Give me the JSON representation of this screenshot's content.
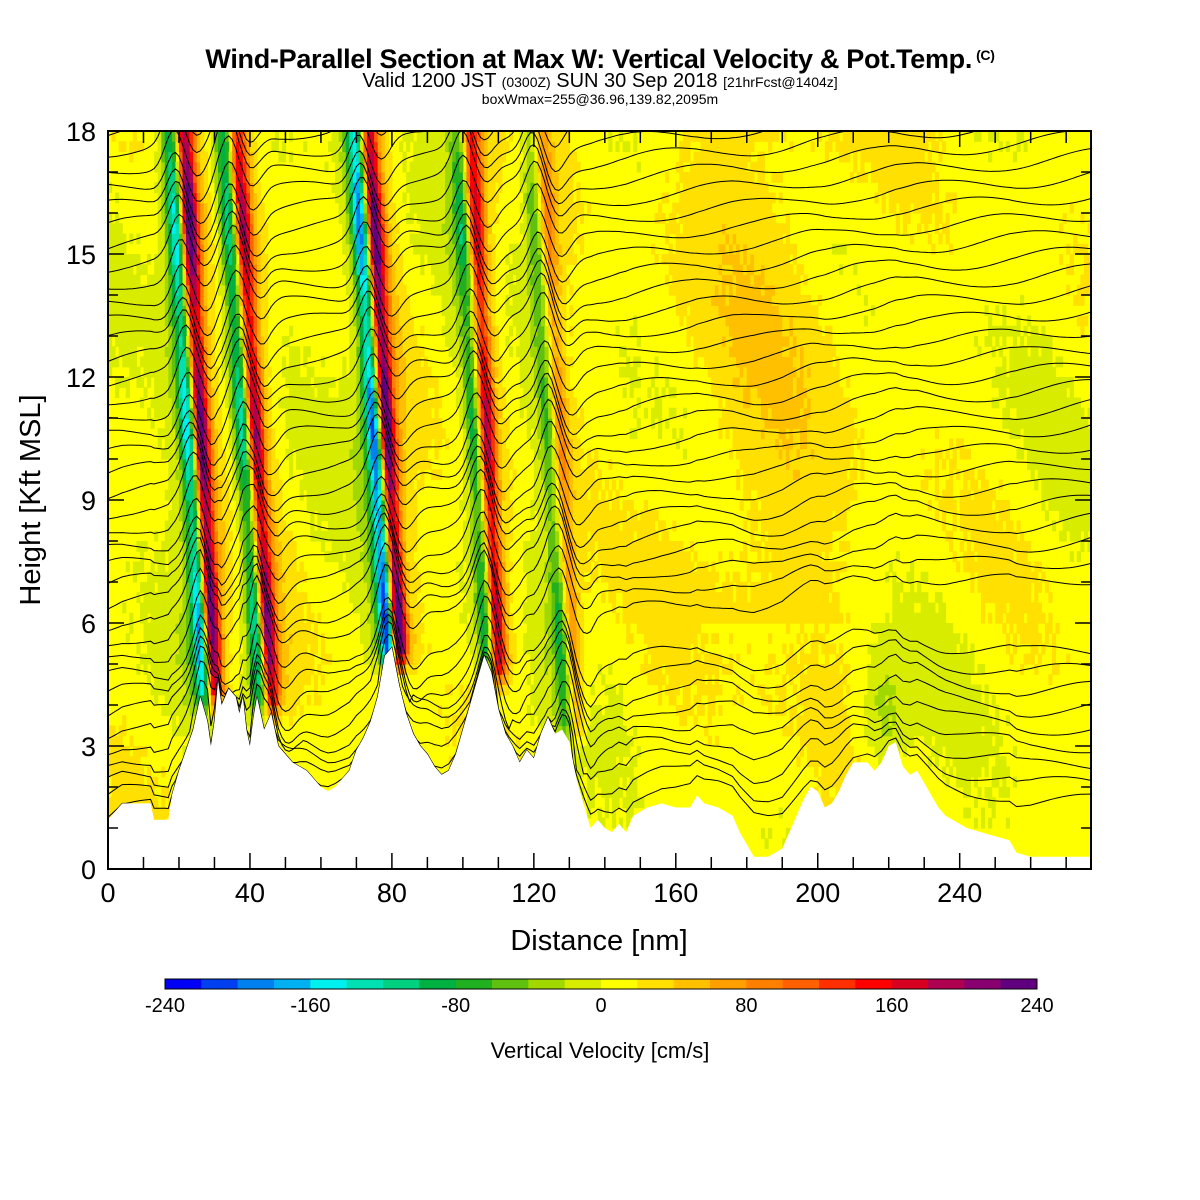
{
  "title": {
    "main": "Wind-Parallel Section at Max W: Vertical Velocity & Pot.Temp.",
    "main_suffix": "(C)",
    "valid_prefix": "Valid 1200 JST",
    "valid_utc": "(0300Z)",
    "valid_date": "SUN 30 Sep 2018",
    "forecast": "[21hrFcst@1404z]",
    "box_info": "boxWmax=255@36.96,139.82,2095m"
  },
  "chart_data": {
    "type": "heatmap",
    "xlabel": "Distance [nm]",
    "ylabel": "Height [Kft MSL]",
    "xlim": [
      0,
      277
    ],
    "ylim": [
      0,
      18
    ],
    "xticks": [
      "0",
      "40",
      "80",
      "120",
      "160",
      "200",
      "240"
    ],
    "yticks": [
      "0",
      "3",
      "6",
      "9",
      "12",
      "15",
      "18"
    ],
    "xtick_values": [
      0,
      40,
      80,
      120,
      160,
      200,
      240
    ],
    "ytick_values": [
      0,
      3,
      6,
      9,
      12,
      15,
      18
    ],
    "colorbar": {
      "title": "Vertical Velocity [cm/s]",
      "labels": [
        "-240",
        "-160",
        "-80",
        "0",
        "80",
        "160",
        "240"
      ],
      "label_values": [
        -240,
        -160,
        -80,
        0,
        80,
        160,
        240
      ],
      "range": [
        -240,
        240
      ],
      "colors": [
        "#0000f5",
        "#0040f0",
        "#0080f0",
        "#00b0f0",
        "#00f0f0",
        "#00e0b0",
        "#00d080",
        "#00b040",
        "#20b020",
        "#60c010",
        "#a0d800",
        "#d8ec00",
        "#ffff00",
        "#ffe000",
        "#ffc000",
        "#ffa000",
        "#ff8000",
        "#ff6000",
        "#ff3000",
        "#ff0000",
        "#d80020",
        "#b00050",
        "#880070",
        "#600080"
      ]
    },
    "terrain": [
      [
        0,
        1.2
      ],
      [
        4,
        1.6
      ],
      [
        12,
        1.6
      ],
      [
        13,
        1.2
      ],
      [
        17,
        1.2
      ],
      [
        18,
        1.8
      ],
      [
        20,
        2.4
      ],
      [
        22,
        2.9
      ],
      [
        24,
        3.4
      ],
      [
        26,
        4.2
      ],
      [
        28,
        3.6
      ],
      [
        29,
        3.0
      ],
      [
        30,
        3.6
      ],
      [
        31,
        4.6
      ],
      [
        32,
        4.0
      ],
      [
        34,
        4.4
      ],
      [
        36,
        4.2
      ],
      [
        37,
        3.8
      ],
      [
        38,
        4.2
      ],
      [
        39,
        3.4
      ],
      [
        40,
        3.0
      ],
      [
        41,
        3.7
      ],
      [
        42,
        4.2
      ],
      [
        44,
        3.4
      ],
      [
        46,
        3.8
      ],
      [
        48,
        3.0
      ],
      [
        50,
        2.8
      ],
      [
        52,
        2.6
      ],
      [
        54,
        2.5
      ],
      [
        56,
        2.4
      ],
      [
        58,
        2.2
      ],
      [
        60,
        2.0
      ],
      [
        62,
        1.9
      ],
      [
        64,
        2.0
      ],
      [
        66,
        2.2
      ],
      [
        68,
        2.4
      ],
      [
        70,
        2.9
      ],
      [
        72,
        3.2
      ],
      [
        74,
        3.6
      ],
      [
        76,
        4.2
      ],
      [
        78,
        5.2
      ],
      [
        80,
        5.4
      ],
      [
        82,
        4.5
      ],
      [
        84,
        3.8
      ],
      [
        86,
        3.3
      ],
      [
        88,
        3.0
      ],
      [
        90,
        2.8
      ],
      [
        92,
        2.5
      ],
      [
        94,
        2.3
      ],
      [
        96,
        2.4
      ],
      [
        98,
        2.8
      ],
      [
        100,
        3.4
      ],
      [
        102,
        4.0
      ],
      [
        104,
        4.6
      ],
      [
        106,
        5.2
      ],
      [
        108,
        4.8
      ],
      [
        110,
        3.9
      ],
      [
        112,
        3.3
      ],
      [
        114,
        3.0
      ],
      [
        116,
        2.6
      ],
      [
        118,
        2.9
      ],
      [
        120,
        2.7
      ],
      [
        122,
        3.3
      ],
      [
        124,
        3.7
      ],
      [
        126,
        3.3
      ],
      [
        128,
        3.4
      ],
      [
        130,
        3.1
      ],
      [
        132,
        2.2
      ],
      [
        134,
        1.6
      ],
      [
        136,
        1.0
      ],
      [
        138,
        1.2
      ],
      [
        140,
        1.0
      ],
      [
        142,
        0.9
      ],
      [
        144,
        1.1
      ],
      [
        146,
        0.9
      ],
      [
        148,
        1.3
      ],
      [
        150,
        1.4
      ],
      [
        152,
        1.5
      ],
      [
        156,
        1.6
      ],
      [
        160,
        1.5
      ],
      [
        164,
        1.5
      ],
      [
        166,
        1.8
      ],
      [
        168,
        1.6
      ],
      [
        172,
        1.5
      ],
      [
        176,
        1.3
      ],
      [
        178,
        0.9
      ],
      [
        180,
        0.6
      ],
      [
        182,
        0.3
      ],
      [
        186,
        0.3
      ],
      [
        190,
        0.5
      ],
      [
        192,
        0.9
      ],
      [
        194,
        1.3
      ],
      [
        196,
        1.7
      ],
      [
        198,
        2.0
      ],
      [
        200,
        1.9
      ],
      [
        202,
        1.5
      ],
      [
        204,
        1.6
      ],
      [
        206,
        1.9
      ],
      [
        208,
        2.3
      ],
      [
        210,
        2.6
      ],
      [
        214,
        2.6
      ],
      [
        216,
        2.4
      ],
      [
        218,
        2.6
      ],
      [
        220,
        3.0
      ],
      [
        222,
        3.1
      ],
      [
        224,
        2.5
      ],
      [
        226,
        2.3
      ],
      [
        228,
        2.4
      ],
      [
        230,
        2.1
      ],
      [
        232,
        1.8
      ],
      [
        234,
        1.5
      ],
      [
        236,
        1.3
      ],
      [
        238,
        1.2
      ],
      [
        242,
        1.0
      ],
      [
        246,
        0.9
      ],
      [
        250,
        0.8
      ],
      [
        254,
        0.7
      ],
      [
        256,
        0.4
      ],
      [
        260,
        0.3
      ],
      [
        266,
        0.3
      ],
      [
        270,
        0.3
      ],
      [
        277,
        0.3
      ]
    ],
    "updraft_bands": [
      {
        "base_x": 30,
        "top_x": 21,
        "base_h": 4.4,
        "w_max": 240
      },
      {
        "base_x": 46,
        "top_x": 36,
        "base_h": 4.2,
        "w_max": 200
      },
      {
        "base_x": 82,
        "top_x": 73,
        "base_h": 5.4,
        "w_max": 255
      },
      {
        "base_x": 110,
        "top_x": 102,
        "base_h": 5.0,
        "w_max": 180
      },
      {
        "base_x": 132,
        "top_x": 122,
        "base_h": 3.6,
        "w_max": 80
      }
    ],
    "downdraft_bands": [
      {
        "base_x": 27,
        "top_x": 18,
        "base_h": 4.4,
        "w_min": -200
      },
      {
        "base_x": 43,
        "top_x": 33,
        "base_h": 4.2,
        "w_min": -160
      },
      {
        "base_x": 79,
        "top_x": 70,
        "base_h": 5.4,
        "w_min": -240
      },
      {
        "base_x": 107,
        "top_x": 99,
        "base_h": 5.0,
        "w_min": -120
      },
      {
        "base_x": 129,
        "top_x": 119,
        "base_h": 3.6,
        "w_min": -80
      }
    ],
    "theta_contour_count": 40
  }
}
